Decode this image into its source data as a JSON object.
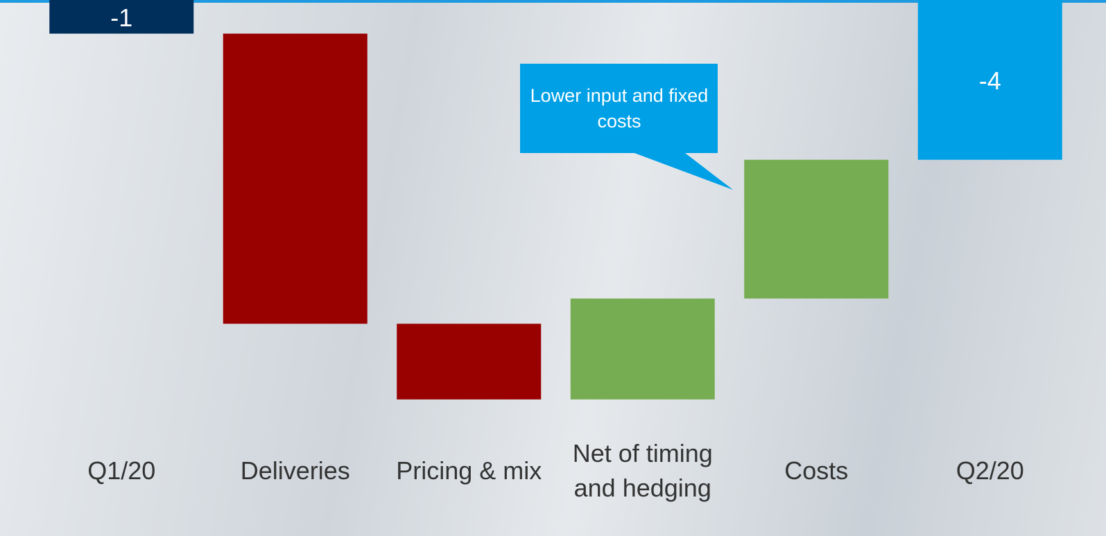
{
  "chart_data": {
    "type": "waterfall",
    "categories": [
      "Q1/20",
      "Deliveries",
      "Pricing & mix",
      "Net of timing and hedging",
      "Costs",
      "Q2/20"
    ],
    "values": [
      -1,
      -6.9,
      -1.8,
      2.4,
      3.3,
      -4
    ],
    "measure": [
      "total",
      "relative",
      "relative",
      "relative",
      "relative",
      "total"
    ],
    "colors": [
      "#002f5c",
      "#990000",
      "#990000",
      "#77ad52",
      "#77ad52",
      "#00a0e6"
    ],
    "labels_on": "total",
    "ylim": [
      -10,
      -0.2
    ],
    "annotation": "Lower input and fixed costs"
  }
}
